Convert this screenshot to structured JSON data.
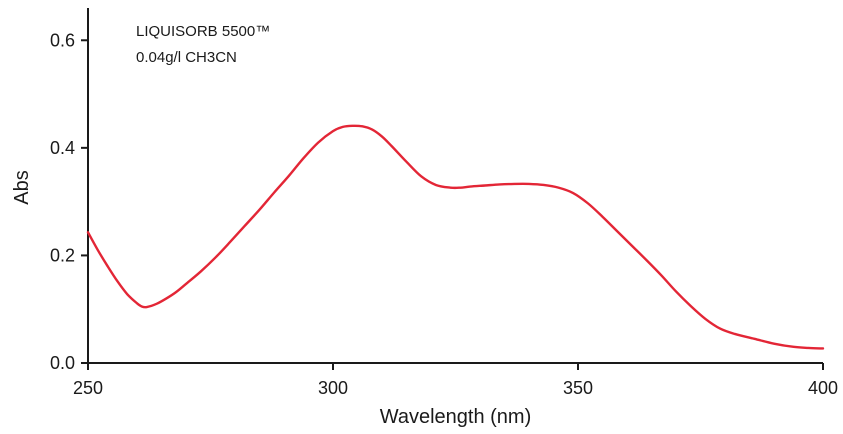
{
  "chart_data": {
    "type": "line",
    "xlabel": "Wavelength (nm)",
    "ylabel": "Abs",
    "xlim": [
      250,
      400
    ],
    "ylim": [
      0,
      0.66
    ],
    "x_ticks": [
      250,
      300,
      350,
      400
    ],
    "x_tick_labels": [
      "250",
      "300",
      "350",
      "400"
    ],
    "y_ticks": [
      0.0,
      0.2,
      0.4,
      0.6
    ],
    "y_tick_labels": [
      "0.0",
      "0.2",
      "0.4",
      "0.6"
    ],
    "grid": false,
    "annotations": [
      "LIQUISORB 5500™",
      "0.04g/l CH3CN"
    ],
    "series": [
      {
        "color": "#e32636",
        "x": [
          250,
          252,
          254,
          256,
          258,
          260,
          261,
          262,
          264,
          266,
          268,
          270,
          273,
          276,
          279,
          282,
          285,
          288,
          291,
          294,
          297,
          300,
          302,
          304,
          306,
          308,
          310,
          312,
          315,
          318,
          321,
          324,
          326,
          328,
          331,
          334,
          337,
          340,
          343,
          346,
          349,
          352,
          355,
          358,
          361,
          364,
          367,
          370,
          373,
          376,
          379,
          382,
          386,
          390,
          394,
          397,
          400
        ],
        "y": [
          0.243,
          0.21,
          0.18,
          0.152,
          0.128,
          0.111,
          0.105,
          0.104,
          0.11,
          0.12,
          0.132,
          0.147,
          0.17,
          0.196,
          0.225,
          0.255,
          0.285,
          0.317,
          0.348,
          0.381,
          0.41,
          0.431,
          0.439,
          0.441,
          0.44,
          0.434,
          0.421,
          0.403,
          0.374,
          0.347,
          0.331,
          0.326,
          0.326,
          0.328,
          0.33,
          0.332,
          0.333,
          0.333,
          0.331,
          0.326,
          0.316,
          0.297,
          0.272,
          0.245,
          0.218,
          0.191,
          0.163,
          0.133,
          0.106,
          0.082,
          0.064,
          0.054,
          0.045,
          0.036,
          0.03,
          0.028,
          0.027
        ]
      }
    ]
  }
}
